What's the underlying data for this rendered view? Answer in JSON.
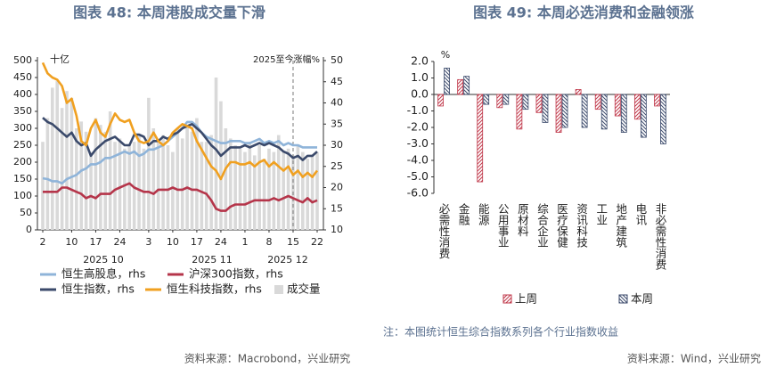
{
  "chart_data": [
    {
      "type": "combo",
      "title": "图表 48: 本周港股成交量下滑",
      "y_unit": "十亿",
      "y2_label": "2025至今涨幅%",
      "source": "资料来源：Macrobond，兴业研究",
      "month_labels": [
        "2025 10",
        "2025 11",
        "2025 12"
      ],
      "categories": [
        "2",
        null,
        null,
        null,
        null,
        null,
        "10",
        null,
        null,
        null,
        null,
        "17",
        null,
        null,
        null,
        null,
        "24",
        null,
        null,
        null,
        null,
        null,
        "3",
        null,
        null,
        null,
        null,
        "10",
        null,
        null,
        null,
        null,
        "17",
        null,
        null,
        null,
        null,
        "24",
        null,
        null,
        null,
        null,
        "1",
        null,
        null,
        null,
        null,
        "8",
        null,
        null,
        null,
        null,
        "15",
        null,
        null,
        null,
        null,
        "22"
      ],
      "ylim": [
        0,
        500
      ],
      "yticks": [
        0,
        50,
        100,
        150,
        200,
        250,
        300,
        350,
        400,
        450,
        500
      ],
      "y2lim": [
        10,
        50
      ],
      "y2ticks": [
        10,
        15,
        20,
        25,
        30,
        35,
        40,
        45,
        50
      ],
      "series": [
        {
          "name": "恒生高股息，rhs",
          "type": "line",
          "axis": "y2",
          "color": "#8fb4d9",
          "values": [
            22.2,
            22,
            21.5,
            21.5,
            21,
            22,
            22.5,
            23,
            24,
            24.5,
            25.5,
            25.5,
            26,
            27,
            27,
            27.5,
            28,
            28.5,
            28,
            28.5,
            27.5,
            28,
            29,
            29,
            29.5,
            30,
            31,
            32,
            33,
            34,
            35.5,
            35.5,
            34.5,
            33,
            32,
            31.5,
            31,
            30.5,
            30.5,
            31,
            31,
            31,
            30.5,
            30.5,
            31,
            31.5,
            30.5,
            31,
            30.5,
            31,
            30,
            30.5,
            30,
            30,
            29.5,
            29.5,
            29.5,
            29.5
          ]
        },
        {
          "name": "沪深300指数，rhs",
          "type": "line",
          "axis": "y2",
          "color": "#b5354a",
          "values": [
            19,
            19,
            19,
            19,
            20,
            20,
            19.5,
            19,
            18.5,
            17.5,
            18,
            17.5,
            18.5,
            18.5,
            18.5,
            19.5,
            20,
            20.5,
            21,
            20,
            19.5,
            19,
            19,
            18.5,
            19.5,
            19.5,
            19.5,
            20,
            19.5,
            19.5,
            20,
            19.5,
            19.5,
            19,
            18.5,
            17,
            15,
            14.5,
            14.5,
            15.5,
            16,
            16,
            16,
            16.5,
            17,
            17,
            17,
            17,
            17.5,
            17,
            17.5,
            18,
            17.5,
            17,
            16.5,
            17.5,
            16.5,
            17
          ]
        },
        {
          "name": "恒生指数，rhs",
          "type": "line",
          "axis": "y2",
          "color": "#3b4a6b",
          "values": [
            36.5,
            35.5,
            35,
            34,
            33,
            32,
            33,
            31,
            30,
            30.5,
            27.5,
            29,
            30,
            31,
            31.5,
            32,
            31,
            30,
            30,
            32.5,
            32.5,
            32,
            30,
            31,
            31,
            32,
            31.5,
            32.5,
            33,
            34,
            34.5,
            35,
            34,
            33,
            31.5,
            30,
            29,
            27.5,
            28.5,
            29.5,
            29.5,
            29.5,
            30,
            29.5,
            30,
            30.5,
            30,
            30.5,
            30,
            29.5,
            28.5,
            28,
            27,
            27.5,
            26.5,
            27.5,
            27.5,
            28.5
          ]
        },
        {
          "name": "恒生科技指数，rhs",
          "type": "line",
          "axis": "y2",
          "color": "#f0a020",
          "values": [
            49.5,
            47,
            46,
            45.5,
            44,
            40,
            41,
            37,
            31,
            30,
            34,
            36,
            33,
            32,
            35,
            37.5,
            36,
            35.5,
            36,
            33,
            31,
            30.5,
            31,
            33,
            31,
            30,
            31,
            33,
            34,
            35,
            34.5,
            34,
            31,
            29,
            27,
            25,
            24,
            22,
            24.5,
            26,
            26,
            25.5,
            25.5,
            26,
            25,
            26,
            26.5,
            25,
            26,
            25,
            24,
            25,
            23,
            24,
            22.5,
            23.5,
            22.5,
            24
          ]
        },
        {
          "name": "成交量",
          "type": "bar",
          "axis": "y",
          "color": "#d9d9d9",
          "values": [
            260,
            330,
            420,
            440,
            360,
            410,
            390,
            300,
            320,
            290,
            230,
            330,
            310,
            290,
            350,
            260,
            270,
            240,
            250,
            260,
            280,
            240,
            390,
            300,
            260,
            280,
            250,
            230,
            300,
            270,
            310,
            290,
            330,
            260,
            260,
            280,
            450,
            380,
            300,
            270,
            250,
            240,
            230,
            260,
            220,
            250,
            210,
            240,
            230,
            280,
            230,
            240,
            220,
            250,
            230,
            210,
            220,
            230
          ]
        }
      ]
    },
    {
      "type": "bar",
      "title": "图表 49: 本周必选消费和金融领涨",
      "y_unit": "%",
      "note": "注：本图统计恒生综合指数系列各个行业指数收益",
      "source": "资料来源：Wind，兴业研究",
      "categories": [
        "必需性消费",
        "金融",
        "能源",
        "公用事业",
        "原材料",
        "综合企业",
        "医疗保健",
        "资讯科技",
        "工业",
        "地产建筑",
        "电讯",
        "非必需性消费"
      ],
      "ylim": [
        -6,
        2
      ],
      "yticks": [
        {
          "value": 2,
          "label": "2.0"
        },
        {
          "value": 1,
          "label": "1.0"
        },
        {
          "value": 0,
          "label": "0.0"
        },
        {
          "value": -1,
          "label": "-1.0"
        },
        {
          "value": -2,
          "label": "-2.0"
        },
        {
          "value": -3,
          "label": "-3.0"
        },
        {
          "value": -4,
          "label": "-4.0"
        },
        {
          "value": -5,
          "label": "-5.0"
        },
        {
          "value": -6,
          "label": "-6.0"
        }
      ],
      "series": [
        {
          "name": "上周",
          "color": "#c0394b",
          "values": [
            -0.7,
            0.9,
            -5.3,
            -0.8,
            -2.1,
            -1.1,
            -2.3,
            0.3,
            -0.9,
            -1.3,
            -1.5,
            -0.7
          ]
        },
        {
          "name": "本周",
          "color": "#3b4a6b",
          "values": [
            1.6,
            1.1,
            -0.6,
            -0.6,
            -0.9,
            -1.7,
            -2.0,
            -2.0,
            -2.1,
            -2.3,
            -2.6,
            -3.0
          ]
        }
      ]
    }
  ]
}
